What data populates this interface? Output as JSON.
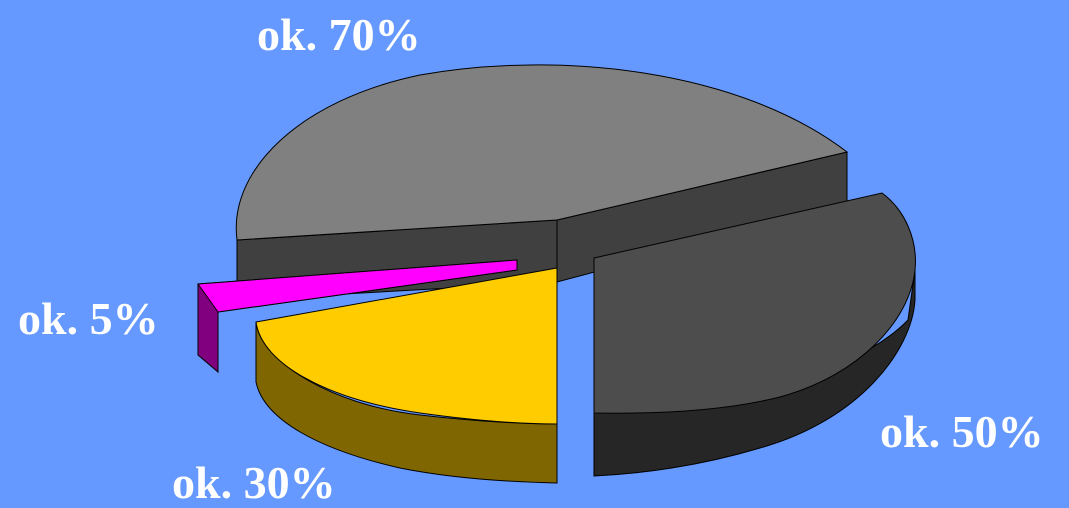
{
  "chart_data": {
    "type": "pie",
    "style": "3d-exploded",
    "slices": [
      {
        "label": "ok. 70%",
        "color": "#808080"
      },
      {
        "label": "ok. 50%",
        "color": "#4d4d4d"
      },
      {
        "label": "ok. 30%",
        "color": "#ffcc00"
      },
      {
        "label": "ok. 5%",
        "color": "#ff00ff"
      }
    ]
  },
  "colors": {
    "background": "#6699ff",
    "label_text": "#ffffff"
  }
}
